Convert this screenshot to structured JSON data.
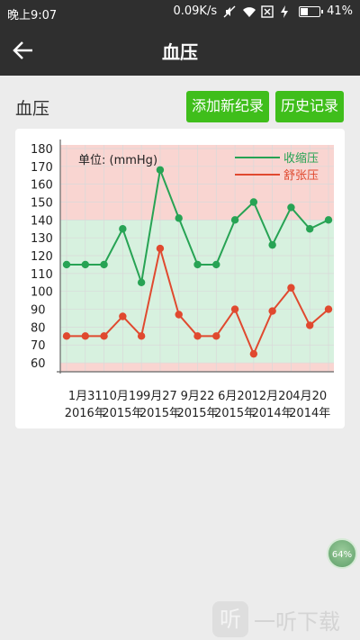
{
  "status_bar": {
    "time": "晚上9:07",
    "speed": "0.09K/s",
    "battery": "41%",
    "battery_level": 0.41,
    "icons": [
      "mute-icon",
      "wifi-icon",
      "sim-icon",
      "charging-icon",
      "battery-icon"
    ]
  },
  "app_bar": {
    "title": "血压",
    "back_icon": "arrow-left-icon"
  },
  "section": {
    "title": "血压",
    "add_label": "添加新纪录",
    "history_label": "历史记录"
  },
  "chart_data": {
    "type": "line",
    "unit_label": "单位: (mmHg)",
    "ylim": [
      55,
      182
    ],
    "y_ticks": [
      60,
      70,
      80,
      90,
      100,
      110,
      120,
      130,
      140,
      150,
      160,
      170,
      180
    ],
    "x_tick_labels": [
      {
        "date": "1月31",
        "year": "2016年",
        "index": 1
      },
      {
        "date": "10月19",
        "year": "2015年",
        "index": 3
      },
      {
        "date": "9月27",
        "year": "2015年",
        "index": 5
      },
      {
        "date": "9月22",
        "year": "2015年",
        "index": 7
      },
      {
        "date": "6月20",
        "year": "2015年",
        "index": 9
      },
      {
        "date": "12月20",
        "year": "2014年",
        "index": 11
      },
      {
        "date": "4月20",
        "year": "2014年",
        "index": 13
      }
    ],
    "point_count": 15,
    "bands": [
      {
        "from": 55,
        "to": 60,
        "color": "#f9d5d1"
      },
      {
        "from": 60,
        "to": 140,
        "color": "#d7f1df"
      },
      {
        "from": 140,
        "to": 182,
        "color": "#f9d5d1"
      }
    ],
    "grid": true,
    "legend_position": "top-right",
    "series": [
      {
        "name": "收缩压",
        "color": "#27a354",
        "values": [
          115,
          115,
          115,
          135,
          105,
          168,
          141,
          115,
          115,
          140,
          150,
          126,
          147,
          135,
          140
        ]
      },
      {
        "name": "舒张压",
        "color": "#e0492f",
        "values": [
          75,
          75,
          75,
          86,
          75,
          124,
          87,
          75,
          75,
          90,
          65,
          89,
          102,
          81,
          90
        ]
      }
    ]
  },
  "floating_badge": {
    "label": "64%"
  },
  "watermark": {
    "logo": "听",
    "text": "一听下载"
  }
}
